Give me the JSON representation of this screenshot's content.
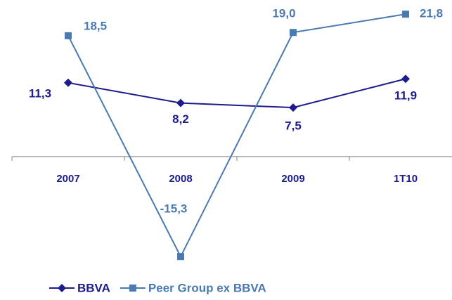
{
  "chart_data": {
    "type": "line",
    "categories": [
      "2007",
      "2008",
      "2009",
      "1T10"
    ],
    "series": [
      {
        "name": "BBVA",
        "color": "#1c1c8c",
        "marker": "diamond",
        "values": [
          11.3,
          8.2,
          7.5,
          11.9
        ],
        "value_labels": [
          "11,3",
          "8,2",
          "7,5",
          "11,9"
        ]
      },
      {
        "name": "Peer Group ex BBVA",
        "color": "#4a7ab0",
        "marker": "square",
        "values": [
          18.5,
          -15.3,
          19.0,
          21.8
        ],
        "value_labels": [
          "18,5",
          "-15,3",
          "19,0",
          "21,8"
        ]
      }
    ],
    "ylim": [
      -17,
      23
    ]
  }
}
